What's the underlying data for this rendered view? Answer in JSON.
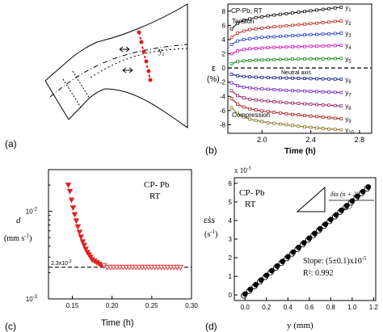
{
  "panels": {
    "a": {
      "label": "(a)",
      "y_label": "y",
      "y_sub": "i"
    },
    "b": {
      "label": "(b)"
    },
    "c": {
      "label": "(c)"
    },
    "d": {
      "label": "(d)"
    }
  },
  "chart_data": [
    {
      "panel": "b",
      "type": "line",
      "annotation_top": "CP-Pb; RT",
      "annotation_tension": "Tension",
      "annotation_compression": "Compression",
      "annotation_axis": "Neutral axis",
      "xlabel": "Time (h)",
      "ylabel": "ε",
      "ylabel_unit": "(%)",
      "x_ticks": [
        "2.0",
        "2.4",
        "2.8"
      ],
      "x_tick_values": [
        2.0,
        2.4,
        2.8
      ],
      "y_ticks": [
        "8",
        "6",
        "4",
        "2",
        "0",
        "-2",
        "-4",
        "-6",
        "-8"
      ],
      "y_tick_values": [
        8,
        6,
        4,
        2,
        0,
        -2,
        -4,
        -6,
        -8
      ],
      "xlim": [
        1.72,
        2.9
      ],
      "ylim": [
        -9.2,
        9.0
      ],
      "neutral_axis_y": 0,
      "x": [
        1.75,
        1.8,
        1.85,
        1.9,
        1.95,
        2.0,
        2.05,
        2.1,
        2.15,
        2.2,
        2.25,
        2.3,
        2.35,
        2.4,
        2.45,
        2.5,
        2.55,
        2.6,
        2.65
      ],
      "series": [
        {
          "name": "y1",
          "label_main": "y",
          "label_sub": "1",
          "color": "#1a1a1a",
          "values": [
            5.5,
            6.3,
            6.7,
            6.9,
            7.1,
            7.2,
            7.35,
            7.45,
            7.55,
            7.65,
            7.75,
            7.85,
            7.95,
            8.05,
            8.15,
            8.25,
            8.35,
            8.45,
            8.55
          ]
        },
        {
          "name": "y2",
          "label_main": "y",
          "label_sub": "2",
          "color": "#c0392b",
          "values": [
            4.3,
            4.9,
            5.2,
            5.4,
            5.5,
            5.6,
            5.7,
            5.8,
            5.85,
            5.95,
            6.0,
            6.1,
            6.15,
            6.25,
            6.3,
            6.4,
            6.45,
            6.55,
            6.6
          ]
        },
        {
          "name": "y3",
          "label_main": "y",
          "label_sub": "3",
          "color": "#2e4bd1",
          "values": [
            3.3,
            3.8,
            4.0,
            4.1,
            4.2,
            4.3,
            4.35,
            4.4,
            4.45,
            4.5,
            4.55,
            4.6,
            4.65,
            4.7,
            4.72,
            4.76,
            4.8,
            4.85,
            4.9
          ]
        },
        {
          "name": "y4",
          "label_main": "y",
          "label_sub": "4",
          "color": "#d11fbf",
          "values": [
            2.0,
            2.4,
            2.6,
            2.7,
            2.75,
            2.8,
            2.85,
            2.9,
            2.92,
            2.95,
            2.98,
            3.0,
            3.02,
            3.05,
            3.08,
            3.1,
            3.12,
            3.15,
            3.18
          ]
        },
        {
          "name": "y5",
          "label_main": "y",
          "label_sub": "5",
          "color": "#1f8f1f",
          "values": [
            0.6,
            0.9,
            1.0,
            1.05,
            1.1,
            1.12,
            1.15,
            1.18,
            1.2,
            1.22,
            1.24,
            1.26,
            1.27,
            1.28,
            1.29,
            1.3,
            1.31,
            1.32,
            1.33
          ]
        },
        {
          "name": "y6",
          "label_main": "y",
          "label_sub": "6",
          "color": "#1c2a8f",
          "values": [
            -0.9,
            -1.1,
            -1.2,
            -1.25,
            -1.3,
            -1.33,
            -1.36,
            -1.38,
            -1.4,
            -1.42,
            -1.44,
            -1.46,
            -1.48,
            -1.5,
            -1.52,
            -1.54,
            -1.56,
            -1.58,
            -1.6
          ]
        },
        {
          "name": "y7",
          "label_main": "y",
          "label_sub": "7",
          "color": "#7d2fbf",
          "values": [
            -2.1,
            -2.5,
            -2.7,
            -2.8,
            -2.9,
            -2.95,
            -3.0,
            -3.05,
            -3.1,
            -3.15,
            -3.2,
            -3.22,
            -3.25,
            -3.3,
            -3.33,
            -3.36,
            -3.4,
            -3.43,
            -3.46
          ]
        },
        {
          "name": "y8",
          "label_main": "y",
          "label_sub": "8",
          "color": "#9a2a6a",
          "values": [
            -3.2,
            -3.9,
            -4.2,
            -4.4,
            -4.5,
            -4.6,
            -4.68,
            -4.75,
            -4.82,
            -4.9,
            -4.95,
            -5.0,
            -5.05,
            -5.1,
            -5.15,
            -5.2,
            -5.25,
            -5.3,
            -5.35
          ]
        },
        {
          "name": "y9",
          "label_main": "y",
          "label_sub": "9",
          "color": "#b02a2a",
          "values": [
            -4.3,
            -5.1,
            -5.5,
            -5.75,
            -5.9,
            -6.05,
            -6.15,
            -6.25,
            -6.35,
            -6.45,
            -6.55,
            -6.6,
            -6.7,
            -6.78,
            -6.85,
            -6.92,
            -7.0,
            -7.08,
            -7.15
          ]
        },
        {
          "name": "y10",
          "label_main": "y",
          "label_sub": "10",
          "color": "#8c7a2a",
          "values": [
            -5.6,
            -6.4,
            -6.9,
            -7.2,
            -7.4,
            -7.55,
            -7.7,
            -7.8,
            -7.9,
            -8.0,
            -8.1,
            -8.2,
            -8.3,
            -8.35,
            -8.45,
            -8.5,
            -8.6,
            -8.65,
            -8.7
          ]
        }
      ]
    },
    {
      "panel": "c",
      "type": "scatter",
      "annotation_line1": "CP- Pb",
      "annotation_line2": "RT",
      "steady_label": "2.3x10",
      "steady_label_exp": "-3",
      "xlabel": "Time (h)",
      "ylabel_main": "d",
      "ylabel_unit": "(mm s",
      "ylabel_unit_exp": "-1",
      "ylabel_unit_close": ")",
      "y_scale": "log",
      "ylim": [
        0.001,
        0.03
      ],
      "xlim": [
        0.12,
        0.3
      ],
      "x_ticks": [
        "0.15",
        "0.20",
        "0.25",
        "0.30"
      ],
      "x_tick_values": [
        0.15,
        0.2,
        0.25,
        0.3
      ],
      "y_ticks": [
        "10",
        "10"
      ],
      "y_tick_exps": [
        "-2",
        "-3"
      ],
      "y_tick_values": [
        0.01,
        0.001
      ],
      "steady_value": 0.0023,
      "marker_color": "#e02020",
      "x": [
        0.145,
        0.147,
        0.149,
        0.151,
        0.153,
        0.155,
        0.157,
        0.159,
        0.161,
        0.163,
        0.165,
        0.167,
        0.169,
        0.171,
        0.173,
        0.175,
        0.178,
        0.181,
        0.184,
        0.187,
        0.19,
        0.194,
        0.198,
        0.202,
        0.206,
        0.21,
        0.214,
        0.218,
        0.222,
        0.226,
        0.23,
        0.234,
        0.238,
        0.242,
        0.246,
        0.25,
        0.254,
        0.258,
        0.262,
        0.266,
        0.27,
        0.274,
        0.278,
        0.282,
        0.286
      ],
      "y": [
        0.02,
        0.017,
        0.0135,
        0.011,
        0.0092,
        0.0078,
        0.0067,
        0.0058,
        0.0051,
        0.0045,
        0.0041,
        0.0037,
        0.0034,
        0.0032,
        0.003,
        0.0028,
        0.0027,
        0.0026,
        0.0025,
        0.0024,
        0.0024,
        0.0023,
        0.0023,
        0.0023,
        0.0023,
        0.0023,
        0.0023,
        0.0023,
        0.0023,
        0.0023,
        0.0023,
        0.0023,
        0.0023,
        0.0023,
        0.0023,
        0.0023,
        0.0023,
        0.0023,
        0.0023,
        0.0023,
        0.0023,
        0.0023,
        0.0023,
        0.0023,
        0.0023
      ]
    },
    {
      "panel": "d",
      "type": "scatter",
      "annotation_line1": "CP- Pb",
      "annotation_line2": "RT",
      "formula_num": "δ̇ss (n + 2)",
      "formula_den": "2L²",
      "slope_text": "Slope: (5±0.1)x10",
      "slope_exp": "-5",
      "r2_text": "R²: 0.992",
      "scale_label": "x 10",
      "scale_exp": "-5",
      "xlabel": "y (mm)",
      "ylabel_main": "ε̇ss",
      "ylabel_unit": "(s",
      "ylabel_unit_exp": "-1",
      "ylabel_unit_close": ")",
      "xlim": [
        -0.1,
        1.22
      ],
      "ylim": [
        -0.3,
        6.3
      ],
      "x_ticks": [
        "0.0",
        "0.2",
        "0.4",
        "0.6",
        "0.8",
        "1.0",
        "1.2"
      ],
      "x_tick_values": [
        0.0,
        0.2,
        0.4,
        0.6,
        0.8,
        1.0,
        1.2
      ],
      "y_ticks": [
        "0",
        "1",
        "2",
        "3",
        "4",
        "5",
        "6"
      ],
      "y_tick_values": [
        0,
        1,
        2,
        3,
        4,
        5,
        6
      ],
      "fit": {
        "x0": 0.0,
        "y0": 0.05,
        "x1": 1.17,
        "y1": 5.9
      },
      "x": [
        0.0,
        0.05,
        0.1,
        0.15,
        0.2,
        0.25,
        0.3,
        0.35,
        0.4,
        0.45,
        0.5,
        0.55,
        0.6,
        0.65,
        0.7,
        0.75,
        0.8,
        0.85,
        0.9,
        0.95,
        1.0,
        1.05,
        1.1,
        1.15
      ],
      "y": [
        0.05,
        0.3,
        0.55,
        0.8,
        1.05,
        1.3,
        1.55,
        1.8,
        2.05,
        2.3,
        2.55,
        2.8,
        3.05,
        3.3,
        3.55,
        3.8,
        4.05,
        4.3,
        4.55,
        4.8,
        5.05,
        5.3,
        5.55,
        5.8
      ]
    }
  ]
}
